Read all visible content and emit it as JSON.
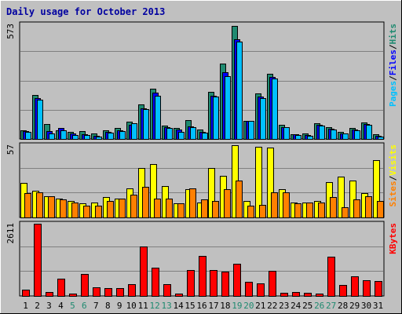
{
  "chart_data": {
    "type": "bar",
    "title": "Daily usage for October 2013",
    "categories": [
      "1",
      "2",
      "3",
      "4",
      "5",
      "6",
      "7",
      "8",
      "9",
      "10",
      "11",
      "12",
      "13",
      "14",
      "15",
      "16",
      "17",
      "18",
      "19",
      "20",
      "21",
      "22",
      "23",
      "24",
      "25",
      "26",
      "27",
      "28",
      "29",
      "30",
      "31"
    ],
    "weekend_days": [
      "5",
      "6",
      "12",
      "13",
      "19",
      "20",
      "26",
      "27"
    ],
    "panels": [
      {
        "id": "top",
        "ymax_label": "573",
        "ymax": 573,
        "side_labels": [
          {
            "text": "Pages",
            "color": "#00c0ff"
          },
          {
            "text": "/",
            "color": "#000000"
          },
          {
            "text": "Files",
            "color": "#0000ff"
          },
          {
            "text": "/",
            "color": "#000000"
          },
          {
            "text": "Hits",
            "color": "#1f8a70"
          }
        ],
        "series": [
          {
            "name": "Hits",
            "color": "#1f8a70",
            "values": [
              44,
              221,
              74,
              45,
              36,
              40,
              26,
              44,
              54,
              87,
              172,
              252,
              66,
              56,
              95,
              47,
              237,
              376,
              564,
              89,
              226,
              324,
              70,
              23,
              27,
              78,
              60,
              36,
              54,
              81,
              24
            ]
          },
          {
            "name": "Files",
            "color": "#0000ff",
            "values": [
              39,
              203,
              38,
              53,
              27,
              24,
              17,
              36,
              42,
              71,
              155,
              230,
              59,
              46,
              62,
              37,
              216,
              334,
              497,
              89,
              211,
              312,
              60,
              22,
              20,
              72,
              51,
              29,
              47,
              74,
              17
            ]
          },
          {
            "name": "Pages",
            "color": "#00c0ff",
            "values": [
              36,
              196,
              28,
              45,
              20,
              20,
              11,
              32,
              38,
              79,
              149,
              214,
              54,
              37,
              59,
              32,
              211,
              315,
              485,
              89,
              205,
              303,
              57,
              20,
              17,
              68,
              46,
              27,
              43,
              71,
              12
            ]
          }
        ]
      },
      {
        "id": "middle",
        "ymax_label": "57",
        "ymax": 57,
        "side_labels": [
          {
            "text": "Sites",
            "color": "#ff8000"
          },
          {
            "text": "/",
            "color": "#000000"
          },
          {
            "text": "Visits",
            "color": "#ffff00"
          }
        ],
        "series": [
          {
            "name": "Visits",
            "color": "#ffff00",
            "values": [
              27,
              21,
              17,
              15,
              13,
              11,
              12,
              16,
              15,
              23,
              39,
              42,
              25,
              11,
              22,
              12,
              39,
              33,
              57,
              13,
              56,
              55,
              22,
              12,
              12,
              13,
              28,
              32,
              29,
              19,
              45
            ]
          },
          {
            "name": "Sites",
            "color": "#ff8000",
            "values": [
              19,
              20,
              17,
              14,
              12,
              9,
              9,
              13,
              15,
              18,
              24,
              15,
              15,
              11,
              23,
              14,
              13,
              22,
              29,
              9,
              10,
              20,
              20,
              11,
              12,
              12,
              16,
              8,
              14,
              17,
              13
            ]
          }
        ]
      },
      {
        "id": "bottom",
        "ymax_label": "2611",
        "ymax": 2611,
        "side_labels": [
          {
            "text": "KBytes",
            "color": "#ff0000"
          }
        ],
        "series": [
          {
            "name": "KBytes",
            "color": "#ff0000",
            "values": [
              214,
              2611,
              131,
              612,
              79,
              787,
              326,
              271,
              271,
              420,
              1800,
              1014,
              432,
              94,
              946,
              1443,
              925,
              868,
              1176,
              512,
              468,
              900,
              115,
              145,
              127,
              73,
              1406,
              389,
              703,
              566,
              539
            ]
          }
        ]
      }
    ]
  }
}
